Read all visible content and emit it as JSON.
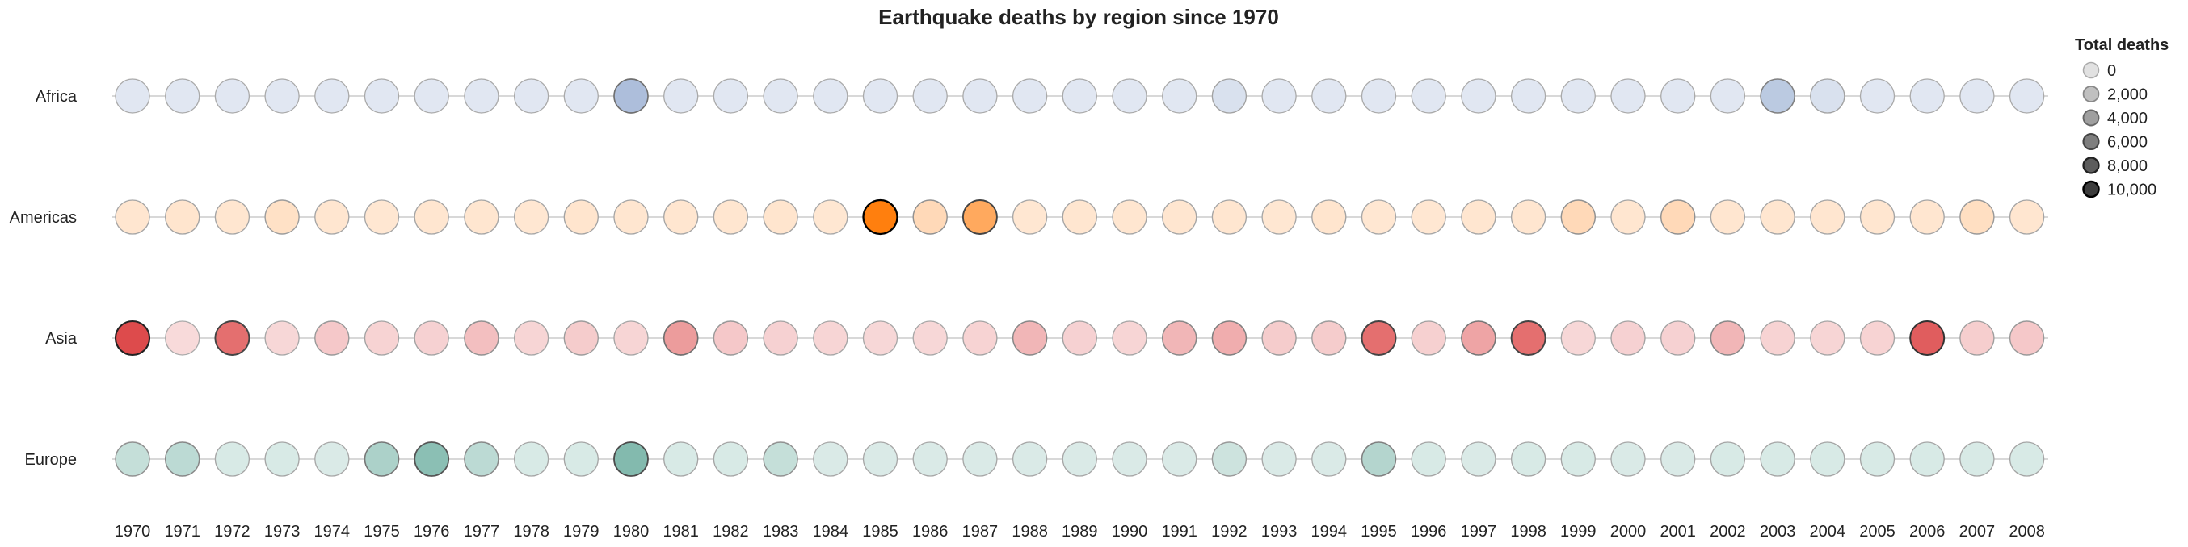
{
  "chart_data": {
    "type": "scatter",
    "title": "Earthquake deaths by region since 1970",
    "xlabel": "",
    "ylabel": "",
    "years": [
      "1970",
      "1971",
      "1972",
      "1973",
      "1974",
      "1975",
      "1976",
      "1977",
      "1978",
      "1979",
      "1980",
      "1981",
      "1982",
      "1983",
      "1984",
      "1985",
      "1986",
      "1987",
      "1988",
      "1989",
      "1990",
      "1991",
      "1992",
      "1993",
      "1994",
      "1995",
      "1996",
      "1997",
      "1998",
      "1999",
      "2000",
      "2001",
      "2002",
      "2003",
      "2004",
      "2005",
      "2006",
      "2007",
      "2008"
    ],
    "legend": {
      "title": "Total deaths",
      "position": "right",
      "items": [
        {
          "value": 0,
          "label": "0"
        },
        {
          "value": 2000,
          "label": "2,000"
        },
        {
          "value": 4000,
          "label": "4,000"
        },
        {
          "value": 6000,
          "label": "6,000"
        },
        {
          "value": 8000,
          "label": "8,000"
        },
        {
          "value": 10000,
          "label": "10,000"
        }
      ]
    },
    "max_deaths": 10000,
    "series": [
      {
        "name": "Africa",
        "color": "#4c72b0",
        "values": [
          0,
          0,
          0,
          0,
          0,
          0,
          0,
          0,
          0,
          0,
          3500,
          0,
          0,
          0,
          0,
          0,
          0,
          0,
          0,
          0,
          0,
          0,
          500,
          0,
          0,
          0,
          0,
          0,
          0,
          0,
          0,
          0,
          0,
          2500,
          500,
          0,
          0,
          0,
          0
        ]
      },
      {
        "name": "Americas",
        "color": "#ff7f0e",
        "values": [
          300,
          400,
          300,
          800,
          300,
          200,
          300,
          300,
          200,
          400,
          300,
          300,
          300,
          400,
          200,
          10000,
          1500,
          6000,
          200,
          300,
          300,
          300,
          300,
          200,
          400,
          200,
          200,
          300,
          300,
          1500,
          300,
          1500,
          300,
          300,
          300,
          300,
          300,
          1000,
          300
        ]
      },
      {
        "name": "Asia",
        "color": "#d62728",
        "values": [
          8000,
          0,
          6000,
          200,
          1000,
          400,
          500,
          1500,
          300,
          800,
          300,
          3500,
          1000,
          500,
          300,
          200,
          200,
          400,
          2000,
          500,
          300,
          2000,
          2500,
          800,
          800,
          6000,
          600,
          3000,
          6000,
          200,
          500,
          500,
          2000,
          400,
          300,
          400,
          7000,
          700,
          1000
        ]
      },
      {
        "name": "Europe",
        "color": "#39917e",
        "values": [
          1500,
          2000,
          300,
          300,
          200,
          3000,
          5000,
          2000,
          300,
          300,
          5500,
          300,
          300,
          1500,
          200,
          200,
          200,
          200,
          200,
          200,
          200,
          200,
          1000,
          200,
          200,
          2500,
          300,
          200,
          300,
          300,
          200,
          200,
          300,
          300,
          300,
          300,
          300,
          300,
          300
        ]
      }
    ]
  }
}
